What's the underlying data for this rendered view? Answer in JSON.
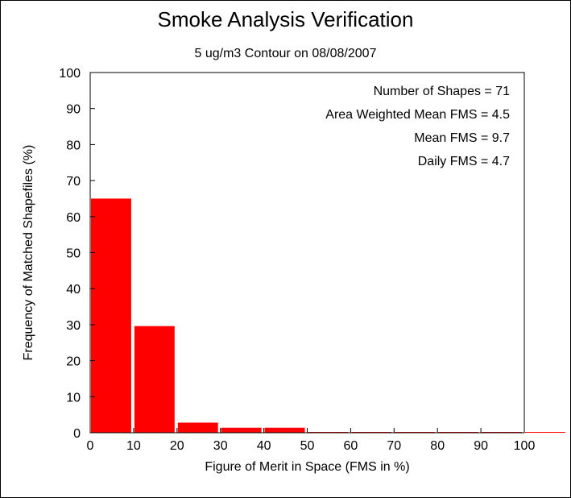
{
  "chart_data": {
    "type": "bar",
    "title": "Smoke Analysis Verification",
    "subtitle": "5 ug/m3 Contour on 08/08/2007",
    "xlabel": "Figure of Merit in Space (FMS in %)",
    "ylabel": "Frequency of Matched Shapefiles (%)",
    "xlim": [
      0,
      100
    ],
    "ylim": [
      0,
      100
    ],
    "x_ticks": [
      0,
      10,
      20,
      30,
      40,
      50,
      60,
      70,
      80,
      90,
      100
    ],
    "y_ticks": [
      0,
      10,
      20,
      30,
      40,
      50,
      60,
      70,
      80,
      90,
      100
    ],
    "bins": [
      {
        "start": 0,
        "end": 10,
        "value": 65
      },
      {
        "start": 10,
        "end": 20,
        "value": 29.6
      },
      {
        "start": 20,
        "end": 30,
        "value": 2.8
      },
      {
        "start": 30,
        "end": 40,
        "value": 1.4
      },
      {
        "start": 40,
        "end": 50,
        "value": 1.4
      },
      {
        "start": 50,
        "end": 60,
        "value": 0
      },
      {
        "start": 60,
        "end": 70,
        "value": 0
      },
      {
        "start": 70,
        "end": 80,
        "value": 0
      },
      {
        "start": 80,
        "end": 90,
        "value": 0
      },
      {
        "start": 90,
        "end": 100,
        "value": 0
      },
      {
        "start": 100,
        "end": 110,
        "value": 0
      }
    ],
    "bar_color": "#ff0000",
    "grid": false,
    "annotations": [
      "Number of Shapes = 71",
      "Area Weighted Mean FMS = 4.5",
      "Mean FMS = 9.7",
      "Daily FMS = 4.7"
    ]
  }
}
